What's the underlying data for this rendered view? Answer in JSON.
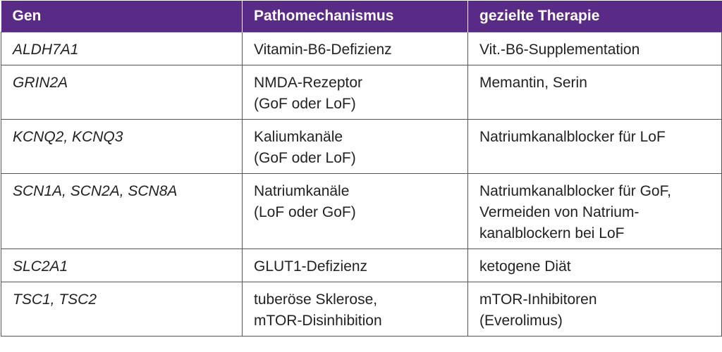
{
  "table": {
    "headers": [
      "Gen",
      "Pathomechanismus",
      "gezielte Therapie"
    ],
    "rows": [
      {
        "gene": "ALDH7A1",
        "mechanism": [
          "Vitamin-B6-Defizienz"
        ],
        "therapy": [
          "Vit.-B6-Supplementation"
        ]
      },
      {
        "gene": "GRIN2A",
        "mechanism": [
          "NMDA-Rezeptor",
          "(GoF oder LoF)"
        ],
        "therapy": [
          "Memantin, Serin"
        ]
      },
      {
        "gene": "KCNQ2, KCNQ3",
        "mechanism": [
          "Kaliumkanäle",
          "(GoF oder LoF)"
        ],
        "therapy": [
          "Natriumkanalblocker für LoF"
        ]
      },
      {
        "gene": "SCN1A, SCN2A, SCN8A",
        "mechanism": [
          "Natriumkanäle",
          "(LoF oder GoF)"
        ],
        "therapy": [
          "Natriumkanalblocker für GoF,",
          "Vermeiden von Natrium-",
          "kanalblockern bei LoF"
        ]
      },
      {
        "gene": "SLC2A1",
        "mechanism": [
          "GLUT1-Defizienz"
        ],
        "therapy": [
          "ketogene Diät"
        ]
      },
      {
        "gene": "TSC1, TSC2",
        "mechanism": [
          "tuberöse Sklerose,",
          "mTOR-Disinhibition"
        ],
        "therapy": [
          "mTOR-Inhibitoren",
          "(Everolimus)"
        ]
      }
    ]
  },
  "colors": {
    "header_bg": "#5a2b86",
    "header_text": "#ffffff",
    "border": "#555555"
  }
}
